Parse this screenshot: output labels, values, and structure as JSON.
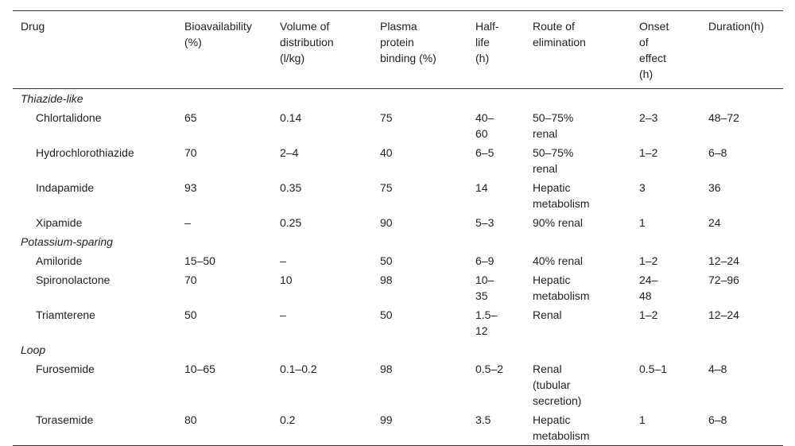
{
  "table": {
    "columns": [
      "Drug",
      "Bioavailability (%)",
      "Volume of distribution (l/kg)",
      "Plasma protein binding (%)",
      "Half-life (h)",
      "Route of elimination",
      "Onset of effect (h)",
      "Duration(h)"
    ],
    "groups": [
      {
        "title": "Thiazide-like",
        "rows": [
          [
            "Chlortalidone",
            "65",
            "0.14",
            "75",
            "40–60",
            "50–75% renal",
            "2–3",
            "48–72"
          ],
          [
            "Hydrochlorothiazide",
            "70",
            "2–4",
            "40",
            "6–5",
            "50–75% renal",
            "1–2",
            "6–8"
          ],
          [
            "Indapamide",
            "93",
            "0.35",
            "75",
            "14",
            "Hepatic metabolism",
            "3",
            "36"
          ],
          [
            "Xipamide",
            "–",
            "0.25",
            "90",
            "5–3",
            "90% renal",
            "1",
            "24"
          ]
        ]
      },
      {
        "title": "Potassium-sparing",
        "rows": [
          [
            "Amiloride",
            "15–50",
            "–",
            "50",
            "6–9",
            "40% renal",
            "1–2",
            "12–24"
          ],
          [
            "Spironolactone",
            "70",
            "10",
            "98",
            "10–35",
            "Hepatic metabolism",
            "24–48",
            "72–96"
          ],
          [
            "Triamterene",
            "50",
            "–",
            "50",
            "1.5–12",
            "Renal",
            "1–2",
            "12–24"
          ]
        ]
      },
      {
        "title": "Loop",
        "rows": [
          [
            "Furosemide",
            "10–65",
            "0.1–0.2",
            "98",
            "0.5–2",
            "Renal (tubular secretion)",
            "0.5–1",
            "4–8"
          ],
          [
            "Torasemide",
            "80",
            "0.2",
            "99",
            "3.5",
            "Hepatic metabolism",
            "1",
            "6–8"
          ]
        ]
      }
    ]
  }
}
